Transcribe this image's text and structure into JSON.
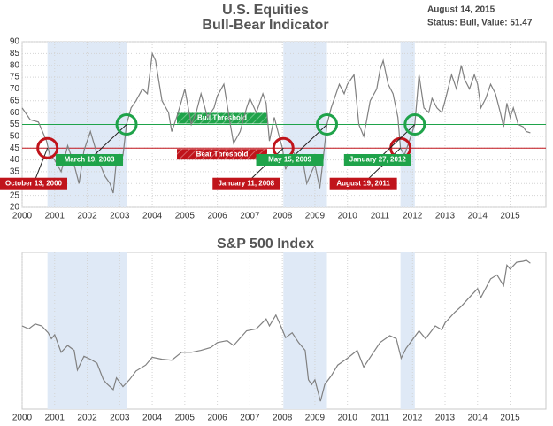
{
  "chart_data": [
    {
      "type": "line",
      "title": "U.S. Equities",
      "subtitle": "Bull-Bear Indicator",
      "date": "August 14, 2015",
      "status": "Status: Bull, Value: 51.47",
      "color": "#808080",
      "x": [
        2000.0,
        2000.25,
        2000.5,
        2000.75,
        2000.85,
        2001.0,
        2001.2,
        2001.4,
        2001.6,
        2001.75,
        2001.9,
        2002.1,
        2002.25,
        2002.4,
        2002.55,
        2002.7,
        2002.8,
        2002.9,
        2003.0,
        2003.1,
        2003.21,
        2003.35,
        2003.5,
        2003.7,
        2003.85,
        2004.0,
        2004.1,
        2004.3,
        2004.5,
        2004.6,
        2004.75,
        2004.9,
        2005.0,
        2005.2,
        2005.35,
        2005.5,
        2005.7,
        2005.9,
        2006.0,
        2006.2,
        2006.4,
        2006.5,
        2006.7,
        2006.9,
        2007.0,
        2007.2,
        2007.4,
        2007.5,
        2007.6,
        2007.75,
        2007.9,
        2008.0,
        2008.1,
        2008.3,
        2008.5,
        2008.6,
        2008.75,
        2008.9,
        2009.0,
        2009.15,
        2009.25,
        2009.37,
        2009.5,
        2009.6,
        2009.75,
        2009.9,
        2010.0,
        2010.2,
        2010.35,
        2010.5,
        2010.7,
        2010.9,
        2011.0,
        2011.1,
        2011.25,
        2011.4,
        2011.55,
        2011.63,
        2011.75,
        2011.9,
        2012.07,
        2012.2,
        2012.35,
        2012.5,
        2012.6,
        2012.75,
        2012.9,
        2013.0,
        2013.2,
        2013.35,
        2013.5,
        2013.6,
        2013.75,
        2013.9,
        2014.0,
        2014.1,
        2014.25,
        2014.4,
        2014.55,
        2014.7,
        2014.8,
        2014.9,
        2015.0,
        2015.1,
        2015.25,
        2015.4,
        2015.5,
        2015.62
      ],
      "values": [
        62,
        57,
        56,
        48,
        42,
        40,
        35,
        46,
        38,
        30,
        44,
        52,
        45,
        38,
        33,
        30,
        26,
        40,
        38,
        42,
        55,
        62,
        65,
        70,
        68,
        85,
        82,
        65,
        60,
        52,
        58,
        65,
        70,
        55,
        60,
        68,
        58,
        62,
        67,
        72,
        55,
        47,
        52,
        62,
        66,
        60,
        68,
        64,
        48,
        58,
        50,
        45,
        36,
        44,
        40,
        42,
        30,
        35,
        38,
        28,
        40,
        55,
        62,
        66,
        72,
        68,
        72,
        76,
        55,
        50,
        65,
        70,
        78,
        82,
        72,
        68,
        58,
        45,
        42,
        48,
        55,
        76,
        62,
        60,
        66,
        62,
        60,
        65,
        76,
        70,
        80,
        74,
        70,
        76,
        72,
        62,
        66,
        72,
        68,
        60,
        54,
        64,
        58,
        62,
        55,
        54,
        52,
        51.47
      ],
      "xlim": [
        2000,
        2016.1
      ],
      "xticks": [
        2000,
        2001,
        2002,
        2003,
        2004,
        2005,
        2006,
        2007,
        2008,
        2009,
        2010,
        2011,
        2012,
        2013,
        2014,
        2015
      ],
      "ylim": [
        20,
        90
      ],
      "yticks": [
        20,
        25,
        30,
        35,
        40,
        45,
        50,
        55,
        60,
        65,
        70,
        75,
        80,
        85,
        90
      ],
      "grid": true,
      "thresholds": [
        {
          "label": "Bull Threshold",
          "value": 55,
          "color": "#1fa34a"
        },
        {
          "label": "Bear Threshold",
          "value": 45,
          "color": "#c0141b"
        }
      ],
      "signals": [
        {
          "label": "October 13, 2000",
          "x": 2000.78,
          "y": 45,
          "color": "#c0141b"
        },
        {
          "label": "March 19, 2003",
          "x": 2003.21,
          "y": 55,
          "color": "#1fa34a"
        },
        {
          "label": "January 11, 2008",
          "x": 2008.03,
          "y": 45,
          "color": "#c0141b"
        },
        {
          "label": "May 15, 2009",
          "x": 2009.37,
          "y": 55,
          "color": "#1fa34a"
        },
        {
          "label": "August 19, 2011",
          "x": 2011.63,
          "y": 45,
          "color": "#c0141b"
        },
        {
          "label": "January 27, 2012",
          "x": 2012.07,
          "y": 55,
          "color": "#1fa34a"
        }
      ]
    },
    {
      "type": "line",
      "title": "S&P 500 Index",
      "color": "#808080",
      "x": [
        2000.0,
        2000.2,
        2000.4,
        2000.6,
        2000.8,
        2000.9,
        2001.0,
        2001.2,
        2001.4,
        2001.6,
        2001.7,
        2001.9,
        2002.1,
        2002.3,
        2002.5,
        2002.6,
        2002.8,
        2002.9,
        2003.1,
        2003.3,
        2003.5,
        2003.8,
        2004.0,
        2004.3,
        2004.6,
        2004.9,
        2005.2,
        2005.5,
        2005.8,
        2006.0,
        2006.3,
        2006.5,
        2006.9,
        2007.2,
        2007.5,
        2007.6,
        2007.8,
        2007.95,
        2008.1,
        2008.3,
        2008.5,
        2008.7,
        2008.8,
        2008.9,
        2009.0,
        2009.17,
        2009.3,
        2009.5,
        2009.7,
        2010.0,
        2010.3,
        2010.5,
        2010.7,
        2011.0,
        2011.3,
        2011.5,
        2011.65,
        2011.8,
        2012.0,
        2012.2,
        2012.4,
        2012.7,
        2012.9,
        2013.0,
        2013.3,
        2013.5,
        2013.8,
        2014.0,
        2014.1,
        2014.4,
        2014.6,
        2014.8,
        2014.9,
        2015.0,
        2015.2,
        2015.4,
        2015.5,
        2015.62
      ],
      "values": [
        1450,
        1420,
        1470,
        1450,
        1380,
        1320,
        1360,
        1180,
        1250,
        1200,
        1000,
        1140,
        1110,
        1070,
        900,
        860,
        800,
        920,
        830,
        900,
        990,
        1050,
        1130,
        1110,
        1100,
        1180,
        1180,
        1200,
        1230,
        1280,
        1300,
        1250,
        1400,
        1420,
        1520,
        1450,
        1560,
        1450,
        1330,
        1380,
        1280,
        1200,
        900,
        850,
        900,
        680,
        850,
        940,
        1050,
        1120,
        1200,
        1030,
        1130,
        1280,
        1350,
        1320,
        1120,
        1220,
        1310,
        1400,
        1320,
        1450,
        1410,
        1480,
        1590,
        1650,
        1760,
        1830,
        1740,
        1930,
        1970,
        1860,
        2070,
        2030,
        2100,
        2110,
        2120,
        2090
      ],
      "xlim": [
        2000,
        2016.1
      ],
      "xticks": [
        2000,
        2001,
        2002,
        2003,
        2004,
        2005,
        2006,
        2007,
        2008,
        2009,
        2010,
        2011,
        2012,
        2013,
        2014,
        2015
      ],
      "ylim": [
        600,
        2200
      ],
      "grid": true
    }
  ]
}
